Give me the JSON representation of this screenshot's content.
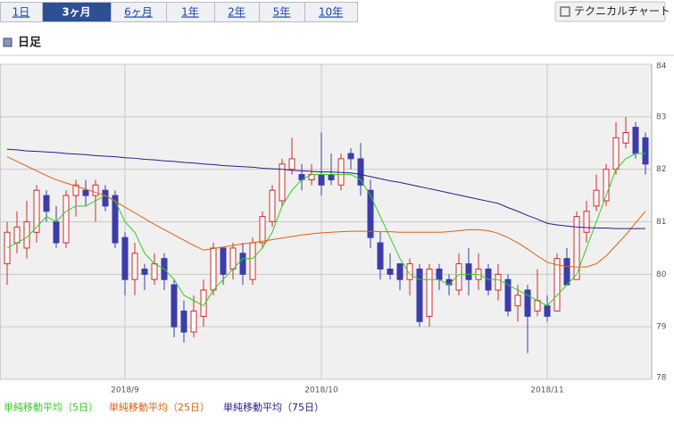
{
  "tabs": [
    "1日",
    "3ヶ月",
    "6ヶ月",
    "1年",
    "2年",
    "5年",
    "10年"
  ],
  "selected_tab": 1,
  "button": "テクニカルチャート",
  "section_title": "日足",
  "chart_data": {
    "type": "candlestick",
    "categories": [
      null,
      null,
      null,
      null,
      null,
      null,
      null,
      null,
      null,
      null,
      null,
      null,
      "2018/9",
      null,
      null,
      null,
      null,
      null,
      null,
      null,
      null,
      null,
      null,
      null,
      null,
      null,
      null,
      null,
      null,
      null,
      null,
      null,
      "2018/10",
      null,
      null,
      null,
      null,
      null,
      null,
      null,
      null,
      null,
      null,
      null,
      null,
      null,
      null,
      null,
      null,
      null,
      null,
      null,
      null,
      null,
      null,
      "2018/11",
      null,
      null,
      null,
      null,
      null,
      null,
      null,
      null,
      null,
      null
    ],
    "open": [
      80.2,
      80.6,
      80.5,
      80.8,
      81.5,
      81.0,
      80.6,
      81.5,
      81.6,
      81.5,
      81.6,
      81.5,
      80.7,
      79.9,
      80.1,
      79.9,
      80.3,
      79.8,
      79.3,
      78.9,
      79.2,
      79.7,
      80.5,
      80.1,
      80.4,
      79.9,
      80.6,
      81.0,
      81.4,
      82.0,
      81.9,
      81.8,
      81.9,
      81.9,
      81.7,
      82.3,
      82.2,
      81.6,
      80.6,
      80.1,
      80.2,
      79.9,
      80.1,
      79.2,
      80.1,
      79.9,
      79.7,
      80.2,
      79.9,
      80.1,
      79.7,
      79.9,
      79.4,
      79.7,
      79.3,
      79.4,
      79.3,
      80.3,
      79.9,
      80.8,
      81.3,
      81.4,
      82.0,
      82.5,
      82.8,
      82.6
    ],
    "high": [
      81.0,
      81.2,
      81.4,
      81.7,
      81.6,
      81.3,
      81.6,
      81.8,
      81.8,
      81.8,
      81.7,
      81.6,
      80.8,
      80.6,
      80.2,
      80.4,
      80.4,
      79.9,
      79.5,
      79.6,
      79.9,
      80.6,
      80.5,
      80.6,
      80.6,
      80.7,
      81.2,
      81.7,
      82.2,
      82.6,
      82.1,
      82.1,
      82.7,
      82.3,
      82.3,
      82.4,
      82.5,
      81.8,
      80.8,
      80.4,
      80.2,
      80.3,
      80.2,
      80.2,
      80.2,
      80.0,
      80.4,
      80.5,
      80.4,
      80.2,
      80.2,
      80.0,
      79.8,
      79.8,
      80.1,
      79.6,
      80.4,
      80.5,
      81.2,
      81.4,
      81.9,
      82.1,
      82.9,
      83.0,
      82.9,
      82.7
    ],
    "low": [
      79.8,
      80.4,
      80.3,
      80.6,
      81.0,
      80.5,
      80.5,
      81.1,
      81.3,
      81.0,
      81.2,
      80.5,
      79.6,
      79.6,
      79.7,
      79.8,
      79.7,
      78.8,
      78.7,
      78.8,
      79.0,
      79.6,
      79.8,
      79.9,
      79.8,
      79.8,
      80.5,
      80.9,
      81.3,
      81.9,
      81.6,
      81.7,
      81.5,
      81.7,
      81.6,
      82.0,
      81.5,
      80.5,
      79.9,
      79.9,
      79.7,
      79.6,
      79.0,
      79.0,
      79.7,
      79.6,
      79.6,
      79.6,
      79.7,
      79.6,
      79.5,
      79.2,
      79.1,
      78.5,
      79.2,
      79.1,
      79.3,
      79.8,
      79.9,
      80.6,
      81.2,
      81.3,
      81.9,
      82.4,
      82.2,
      81.9
    ],
    "close": [
      80.8,
      80.9,
      81.0,
      81.6,
      81.2,
      80.6,
      81.5,
      81.7,
      81.5,
      81.7,
      81.3,
      80.6,
      79.9,
      80.4,
      80.0,
      80.2,
      79.9,
      79.0,
      78.9,
      79.3,
      79.7,
      80.5,
      80.0,
      80.5,
      80.0,
      80.6,
      81.1,
      81.6,
      82.1,
      82.2,
      81.8,
      81.9,
      81.7,
      81.8,
      82.2,
      82.2,
      81.7,
      80.7,
      80.1,
      80.0,
      79.9,
      80.2,
      79.1,
      80.1,
      79.9,
      79.8,
      80.2,
      79.9,
      80.1,
      79.7,
      80.0,
      79.3,
      79.6,
      79.2,
      79.5,
      79.2,
      80.3,
      79.8,
      81.1,
      81.2,
      81.6,
      82.0,
      82.6,
      82.7,
      82.3,
      82.1
    ],
    "up_color": "#d42a2a",
    "down_color": "#3c3cab",
    "series": [
      {
        "name": "単純移動平均（5日）",
        "color": "#33cc22",
        "values": [
          80.5,
          80.6,
          80.7,
          80.9,
          81.1,
          81.0,
          81.2,
          81.3,
          81.3,
          81.4,
          81.5,
          81.4,
          81.0,
          80.8,
          80.4,
          80.2,
          80.1,
          79.9,
          79.6,
          79.5,
          79.4,
          79.7,
          79.9,
          80.1,
          80.3,
          80.3,
          80.5,
          80.8,
          81.3,
          81.6,
          81.8,
          81.9,
          81.9,
          81.9,
          81.9,
          81.9,
          81.8,
          81.5,
          81.1,
          80.7,
          80.3,
          80.0,
          79.9,
          79.9,
          79.9,
          79.8,
          80.0,
          80.0,
          80.0,
          79.9,
          79.9,
          79.8,
          79.7,
          79.6,
          79.5,
          79.4,
          79.6,
          79.8,
          80.0,
          80.5,
          81.0,
          81.5,
          82.0,
          82.2,
          82.3,
          82.3
        ]
      },
      {
        "name": "単純移動平均（25日）",
        "color": "#e06010",
        "values": [
          82.24,
          82.15,
          82.06,
          81.97,
          81.88,
          81.8,
          81.74,
          81.68,
          81.62,
          81.56,
          81.5,
          81.39,
          81.28,
          81.17,
          81.06,
          80.95,
          80.85,
          80.75,
          80.65,
          80.55,
          80.46,
          80.49,
          80.52,
          80.55,
          80.58,
          80.6,
          80.63,
          80.66,
          80.69,
          80.72,
          80.75,
          80.77,
          80.79,
          80.8,
          80.81,
          80.82,
          80.82,
          80.82,
          80.81,
          80.81,
          80.8,
          80.8,
          80.8,
          80.8,
          80.8,
          80.81,
          80.83,
          80.85,
          80.85,
          80.83,
          80.78,
          80.7,
          80.6,
          80.48,
          80.35,
          80.23,
          80.18,
          80.15,
          80.14,
          80.14,
          80.2,
          80.35,
          80.55,
          80.75,
          80.98,
          81.2
        ]
      },
      {
        "name": "単純移動平均（75日）",
        "color": "#2a1a8a",
        "values": [
          82.38,
          82.37,
          82.35,
          82.34,
          82.33,
          82.32,
          82.3,
          82.29,
          82.28,
          82.26,
          82.25,
          82.24,
          82.22,
          82.21,
          82.19,
          82.18,
          82.16,
          82.15,
          82.13,
          82.12,
          82.1,
          82.09,
          82.07,
          82.06,
          82.05,
          82.04,
          82.02,
          82.01,
          82.0,
          81.98,
          81.97,
          81.96,
          81.95,
          81.95,
          81.94,
          81.93,
          81.9,
          81.86,
          81.82,
          81.78,
          81.75,
          81.71,
          81.67,
          81.63,
          81.59,
          81.55,
          81.51,
          81.47,
          81.43,
          81.39,
          81.35,
          81.27,
          81.2,
          81.12,
          81.05,
          80.97,
          80.94,
          80.92,
          80.9,
          80.89,
          80.88,
          80.88,
          80.87,
          80.87,
          80.87,
          80.87
        ]
      }
    ],
    "ylim": [
      78,
      84
    ],
    "yticks": [
      78,
      79,
      80,
      81,
      82,
      83,
      84
    ],
    "grid": true,
    "y_axis_side": "right"
  }
}
